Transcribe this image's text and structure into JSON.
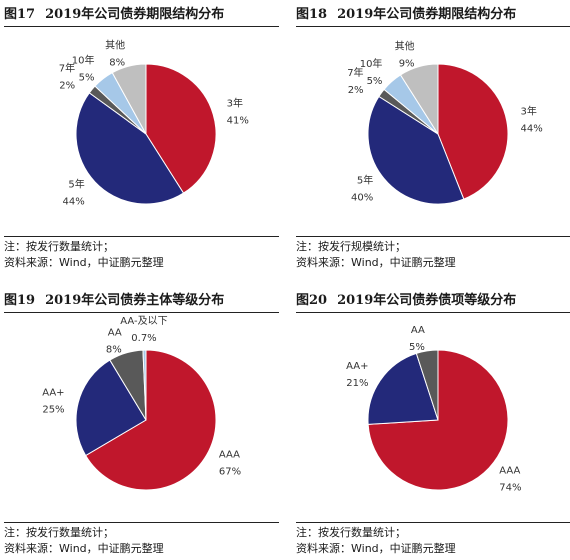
{
  "colors": {
    "AAA": "#c0172c",
    "AA+": "#23297a",
    "AA": "#595959",
    "AA-及以下": "#a6c8e8",
    "3年": "#c0172c",
    "5年": "#23297a",
    "7年": "#595959",
    "10年": "#a6c8e8",
    "其他": "#bfbfbf"
  },
  "chart_data": [
    {
      "type": "pie",
      "figure_label": "图17",
      "title": "2019年公司债券期限结构分布",
      "slices": [
        {
          "label": "3年",
          "value_label": "41%",
          "value": 41,
          "color": "#c0172c"
        },
        {
          "label": "5年",
          "value_label": "44%",
          "value": 44,
          "color": "#23297a"
        },
        {
          "label": "7年",
          "value_label": "2%",
          "value": 2,
          "color": "#595959"
        },
        {
          "label": "10年",
          "value_label": "5%",
          "value": 5,
          "color": "#a6c8e8"
        },
        {
          "label": "其他",
          "value_label": "8%",
          "value": 8,
          "color": "#bfbfbf"
        }
      ],
      "notes": [
        "注：按发行数量统计；",
        "资料来源：Wind，中证鹏元整理"
      ]
    },
    {
      "type": "pie",
      "figure_label": "图18",
      "title": "2019年公司债券期限结构分布",
      "slices": [
        {
          "label": "3年",
          "value_label": "44%",
          "value": 44,
          "color": "#c0172c"
        },
        {
          "label": "5年",
          "value_label": "40%",
          "value": 40,
          "color": "#23297a"
        },
        {
          "label": "7年",
          "value_label": "2%",
          "value": 2,
          "color": "#595959"
        },
        {
          "label": "10年",
          "value_label": "5%",
          "value": 5,
          "color": "#a6c8e8"
        },
        {
          "label": "其他",
          "value_label": "9%",
          "value": 9,
          "color": "#bfbfbf"
        }
      ],
      "notes": [
        "注：按发行规模统计；",
        "资料来源：Wind，中证鹏元整理"
      ]
    },
    {
      "type": "pie",
      "figure_label": "图19",
      "title": "2019年公司债券主体等级分布",
      "slices": [
        {
          "label": "AAA",
          "value_label": "67%",
          "value": 67,
          "color": "#c0172c"
        },
        {
          "label": "AA+",
          "value_label": "25%",
          "value": 25,
          "color": "#23297a"
        },
        {
          "label": "AA",
          "value_label": "8%",
          "value": 8,
          "color": "#595959"
        },
        {
          "label": "AA-及以下",
          "value_label": "0.7%",
          "value": 0.7,
          "color": "#a6c8e8"
        }
      ],
      "notes": [
        "注：按发行数量统计；",
        "资料来源：Wind，中证鹏元整理"
      ]
    },
    {
      "type": "pie",
      "figure_label": "图20",
      "title": "2019年公司债券债项等级分布",
      "slices": [
        {
          "label": "AAA",
          "value_label": "74%",
          "value": 74,
          "color": "#c0172c"
        },
        {
          "label": "AA+",
          "value_label": "21%",
          "value": 21,
          "color": "#23297a"
        },
        {
          "label": "AA",
          "value_label": "5%",
          "value": 5,
          "color": "#595959"
        }
      ],
      "notes": [
        "注：按发行数量统计；",
        "资料来源：Wind，中证鹏元整理"
      ]
    }
  ]
}
